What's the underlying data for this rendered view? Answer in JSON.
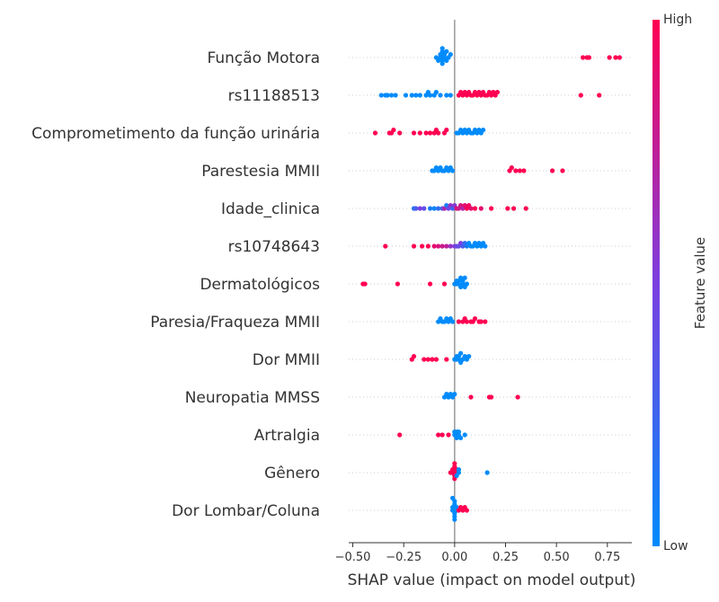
{
  "chart_data": {
    "type": "scatter",
    "subtype": "shap-beeswarm",
    "xlabel": "SHAP value (impact on model output)",
    "xlim": [
      -0.52,
      0.87
    ],
    "xticks": [
      "−0.50",
      "−0.25",
      "0.00",
      "0.25",
      "0.50",
      "0.75"
    ],
    "xtick_values": [
      -0.5,
      -0.25,
      0,
      0.25,
      0.5,
      0.75
    ],
    "colorbar": {
      "title": "Feature value",
      "high_label": "High",
      "low_label": "Low",
      "low_color": "#008bfb",
      "high_color": "#ff0052"
    },
    "grid": false,
    "features": [
      {
        "name": "Função Motora",
        "points": [
          [
            -0.06,
            0.0
          ],
          [
            -0.06,
            0.0
          ],
          [
            -0.06,
            0.0
          ],
          [
            -0.06,
            0.0
          ],
          [
            -0.06,
            0.0
          ],
          [
            -0.06,
            0.0
          ],
          [
            -0.07,
            0.0
          ],
          [
            -0.07,
            0.0
          ],
          [
            -0.05,
            0.0
          ],
          [
            -0.05,
            0.0
          ],
          [
            -0.04,
            0.0
          ],
          [
            -0.04,
            0.0
          ],
          [
            -0.03,
            0.0
          ],
          [
            -0.08,
            0.0
          ],
          [
            -0.09,
            0.0
          ],
          [
            -0.02,
            0.0
          ],
          [
            0.63,
            1.0
          ],
          [
            0.65,
            1.0
          ],
          [
            0.66,
            1.0
          ],
          [
            0.76,
            1.0
          ],
          [
            0.79,
            1.0
          ],
          [
            0.81,
            1.0
          ]
        ]
      },
      {
        "name": "rs11188513",
        "points": [
          [
            -0.36,
            0.0
          ],
          [
            -0.34,
            0.0
          ],
          [
            -0.33,
            0.0
          ],
          [
            -0.31,
            0.0
          ],
          [
            -0.29,
            0.0
          ],
          [
            -0.24,
            0.0
          ],
          [
            -0.21,
            0.0
          ],
          [
            -0.19,
            0.0
          ],
          [
            -0.17,
            0.0
          ],
          [
            -0.14,
            0.0
          ],
          [
            -0.13,
            0.0
          ],
          [
            -0.12,
            0.0
          ],
          [
            -0.1,
            0.0
          ],
          [
            -0.09,
            0.0
          ],
          [
            -0.07,
            0.0
          ],
          [
            -0.04,
            0.0
          ],
          [
            -0.02,
            0.0
          ],
          [
            0.02,
            1.0
          ],
          [
            0.03,
            1.0
          ],
          [
            0.04,
            1.0
          ],
          [
            0.05,
            1.0
          ],
          [
            0.06,
            1.0
          ],
          [
            0.07,
            1.0
          ],
          [
            0.08,
            1.0
          ],
          [
            0.09,
            1.0
          ],
          [
            0.1,
            1.0
          ],
          [
            0.11,
            1.0
          ],
          [
            0.12,
            1.0
          ],
          [
            0.13,
            1.0
          ],
          [
            0.14,
            1.0
          ],
          [
            0.15,
            1.0
          ],
          [
            0.16,
            1.0
          ],
          [
            0.17,
            1.0
          ],
          [
            0.18,
            1.0
          ],
          [
            0.19,
            1.0
          ],
          [
            0.2,
            1.0
          ],
          [
            0.21,
            1.0
          ],
          [
            0.62,
            1.0
          ],
          [
            0.71,
            1.0
          ]
        ]
      },
      {
        "name": "Comprometimento da função urinária",
        "points": [
          [
            -0.39,
            1.0
          ],
          [
            -0.32,
            1.0
          ],
          [
            -0.31,
            1.0
          ],
          [
            -0.3,
            1.0
          ],
          [
            -0.27,
            1.0
          ],
          [
            -0.2,
            1.0
          ],
          [
            -0.17,
            1.0
          ],
          [
            -0.14,
            1.0
          ],
          [
            -0.12,
            1.0
          ],
          [
            -0.1,
            1.0
          ],
          [
            -0.09,
            1.0
          ],
          [
            -0.08,
            1.0
          ],
          [
            -0.05,
            1.0
          ],
          [
            -0.04,
            1.0
          ],
          [
            0.01,
            0.0
          ],
          [
            0.02,
            0.0
          ],
          [
            0.03,
            0.0
          ],
          [
            0.04,
            0.0
          ],
          [
            0.05,
            0.0
          ],
          [
            0.06,
            0.0
          ],
          [
            0.07,
            0.0
          ],
          [
            0.08,
            0.0
          ],
          [
            0.09,
            0.0
          ],
          [
            0.1,
            0.0
          ],
          [
            0.11,
            0.0
          ],
          [
            0.12,
            0.0
          ],
          [
            0.13,
            0.0
          ],
          [
            0.14,
            0.0
          ]
        ]
      },
      {
        "name": "Parestesia MMII",
        "points": [
          [
            -0.11,
            0.0
          ],
          [
            -0.1,
            0.0
          ],
          [
            -0.09,
            0.0
          ],
          [
            -0.08,
            0.0
          ],
          [
            -0.07,
            0.0
          ],
          [
            -0.06,
            0.0
          ],
          [
            -0.05,
            0.0
          ],
          [
            -0.04,
            0.0
          ],
          [
            -0.03,
            0.0
          ],
          [
            -0.02,
            0.0
          ],
          [
            -0.01,
            0.0
          ],
          [
            0.27,
            1.0
          ],
          [
            0.28,
            1.0
          ],
          [
            0.3,
            1.0
          ],
          [
            0.32,
            1.0
          ],
          [
            0.34,
            1.0
          ],
          [
            0.48,
            1.0
          ],
          [
            0.53,
            1.0
          ]
        ]
      },
      {
        "name": "Idade_clinica",
        "points": [
          [
            -0.2,
            0.15
          ],
          [
            -0.19,
            0.3
          ],
          [
            -0.17,
            0.5
          ],
          [
            -0.15,
            0.4
          ],
          [
            -0.12,
            0.1
          ],
          [
            -0.1,
            0.05
          ],
          [
            -0.08,
            0.2
          ],
          [
            -0.06,
            0.3
          ],
          [
            -0.05,
            0.7
          ],
          [
            -0.04,
            0.1
          ],
          [
            -0.03,
            0.45
          ],
          [
            -0.02,
            0.6
          ],
          [
            -0.01,
            0.25
          ],
          [
            0.0,
            0.55
          ],
          [
            0.01,
            0.9
          ],
          [
            0.02,
            0.8
          ],
          [
            0.03,
            0.85
          ],
          [
            0.04,
            0.7
          ],
          [
            0.05,
            0.9
          ],
          [
            0.06,
            1.0
          ],
          [
            0.07,
            0.95
          ],
          [
            0.08,
            0.9
          ],
          [
            0.1,
            1.0
          ],
          [
            0.13,
            0.9
          ],
          [
            0.18,
            1.0
          ],
          [
            0.26,
            1.0
          ],
          [
            0.29,
            1.0
          ],
          [
            0.35,
            1.0
          ]
        ]
      },
      {
        "name": "rs10748643",
        "points": [
          [
            -0.34,
            1.0
          ],
          [
            -0.2,
            1.0
          ],
          [
            -0.16,
            1.0
          ],
          [
            -0.13,
            1.0
          ],
          [
            -0.1,
            0.9
          ],
          [
            -0.08,
            0.85
          ],
          [
            -0.06,
            0.8
          ],
          [
            -0.04,
            0.75
          ],
          [
            -0.02,
            0.6
          ],
          [
            0.0,
            0.5
          ],
          [
            0.01,
            0.45
          ],
          [
            0.02,
            0.4
          ],
          [
            0.03,
            0.5
          ],
          [
            0.04,
            0.3
          ],
          [
            0.05,
            0.2
          ],
          [
            0.06,
            0.1
          ],
          [
            0.07,
            0.0
          ],
          [
            0.08,
            0.0
          ],
          [
            0.09,
            0.0
          ],
          [
            0.1,
            0.0
          ],
          [
            0.11,
            0.0
          ],
          [
            0.12,
            0.0
          ],
          [
            0.13,
            0.0
          ],
          [
            0.14,
            0.0
          ],
          [
            0.15,
            0.0
          ]
        ]
      },
      {
        "name": "Dermatológicos",
        "points": [
          [
            -0.45,
            1.0
          ],
          [
            -0.44,
            1.0
          ],
          [
            -0.28,
            1.0
          ],
          [
            -0.12,
            1.0
          ],
          [
            -0.05,
            1.0
          ],
          [
            0.01,
            0.0
          ],
          [
            0.01,
            0.0
          ],
          [
            0.02,
            0.0
          ],
          [
            0.02,
            0.0
          ],
          [
            0.03,
            0.0
          ],
          [
            0.03,
            0.0
          ],
          [
            0.04,
            0.0
          ],
          [
            0.04,
            0.0
          ],
          [
            0.05,
            0.0
          ],
          [
            0.05,
            0.0
          ],
          [
            0.06,
            0.0
          ],
          [
            0.0,
            0.0
          ]
        ]
      },
      {
        "name": "Paresia/Fraqueza MMII",
        "points": [
          [
            -0.08,
            0.0
          ],
          [
            -0.07,
            0.0
          ],
          [
            -0.06,
            0.0
          ],
          [
            -0.05,
            0.0
          ],
          [
            -0.04,
            0.0
          ],
          [
            -0.03,
            0.0
          ],
          [
            -0.02,
            0.0
          ],
          [
            -0.01,
            0.0
          ],
          [
            0.02,
            1.0
          ],
          [
            0.04,
            1.0
          ],
          [
            0.05,
            1.0
          ],
          [
            0.06,
            1.0
          ],
          [
            0.08,
            1.0
          ],
          [
            0.09,
            1.0
          ],
          [
            0.1,
            1.0
          ],
          [
            0.12,
            1.0
          ],
          [
            0.13,
            1.0
          ],
          [
            0.15,
            1.0
          ]
        ]
      },
      {
        "name": "Dor MMII",
        "points": [
          [
            -0.21,
            1.0
          ],
          [
            -0.2,
            1.0
          ],
          [
            -0.15,
            1.0
          ],
          [
            -0.13,
            1.0
          ],
          [
            -0.11,
            1.0
          ],
          [
            -0.09,
            1.0
          ],
          [
            -0.04,
            1.0
          ],
          [
            0.0,
            0.0
          ],
          [
            0.01,
            0.0
          ],
          [
            0.01,
            0.0
          ],
          [
            0.02,
            0.0
          ],
          [
            0.02,
            0.0
          ],
          [
            0.03,
            0.0
          ],
          [
            0.03,
            0.0
          ],
          [
            0.04,
            0.0
          ],
          [
            0.05,
            0.0
          ],
          [
            0.06,
            0.0
          ],
          [
            0.07,
            0.0
          ]
        ]
      },
      {
        "name": "Neuropatia MMSS",
        "points": [
          [
            -0.05,
            0.0
          ],
          [
            -0.04,
            0.0
          ],
          [
            -0.03,
            0.0
          ],
          [
            -0.02,
            0.0
          ],
          [
            -0.01,
            0.0
          ],
          [
            0.0,
            0.0
          ],
          [
            0.08,
            1.0
          ],
          [
            0.17,
            1.0
          ],
          [
            0.18,
            1.0
          ],
          [
            0.31,
            1.0
          ]
        ]
      },
      {
        "name": "Artralgia",
        "points": [
          [
            -0.27,
            1.0
          ],
          [
            -0.08,
            1.0
          ],
          [
            -0.06,
            1.0
          ],
          [
            -0.03,
            1.0
          ],
          [
            0.0,
            0.0
          ],
          [
            0.0,
            0.0
          ],
          [
            0.01,
            0.0
          ],
          [
            0.01,
            0.0
          ],
          [
            0.01,
            0.0
          ],
          [
            0.02,
            0.0
          ],
          [
            0.02,
            0.0
          ],
          [
            0.03,
            0.0
          ],
          [
            0.05,
            0.0
          ]
        ]
      },
      {
        "name": "Gênero",
        "points": [
          [
            -0.02,
            1.0
          ],
          [
            -0.01,
            1.0
          ],
          [
            -0.01,
            1.0
          ],
          [
            0.0,
            1.0
          ],
          [
            0.0,
            1.0
          ],
          [
            0.0,
            1.0
          ],
          [
            0.01,
            1.0
          ],
          [
            0.01,
            1.0
          ],
          [
            0.0,
            1.0
          ],
          [
            0.02,
            0.0
          ],
          [
            0.01,
            0.0
          ],
          [
            0.02,
            0.0
          ],
          [
            0.16,
            0.0
          ]
        ]
      },
      {
        "name": "Dor Lombar/Coluna",
        "points": [
          [
            -0.01,
            0.0
          ],
          [
            -0.01,
            0.0
          ],
          [
            0.0,
            0.0
          ],
          [
            0.0,
            0.0
          ],
          [
            0.0,
            0.0
          ],
          [
            0.0,
            0.0
          ],
          [
            0.0,
            0.0
          ],
          [
            0.01,
            0.0
          ],
          [
            0.01,
            0.0
          ],
          [
            -0.01,
            0.0
          ],
          [
            0.02,
            1.0
          ],
          [
            0.03,
            1.0
          ],
          [
            0.04,
            1.0
          ],
          [
            0.05,
            1.0
          ],
          [
            0.06,
            1.0
          ]
        ]
      }
    ]
  }
}
